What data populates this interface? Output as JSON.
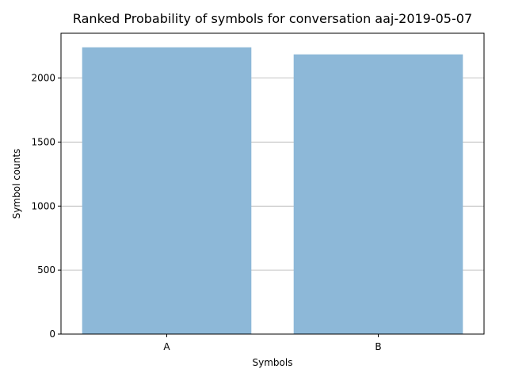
{
  "chart_data": {
    "type": "bar",
    "title": "Ranked Probability of symbols for conversation aaj-2019-05-07",
    "xlabel": "Symbols",
    "ylabel": "Symbol counts",
    "categories": [
      "A",
      "B"
    ],
    "values": [
      2240,
      2185
    ],
    "ylim": [
      0,
      2350
    ],
    "yticks": [
      0,
      500,
      1000,
      1500,
      2000
    ],
    "grid": "y",
    "bar_color": "#8db8d8",
    "grid_color": "#b0b0b0"
  }
}
